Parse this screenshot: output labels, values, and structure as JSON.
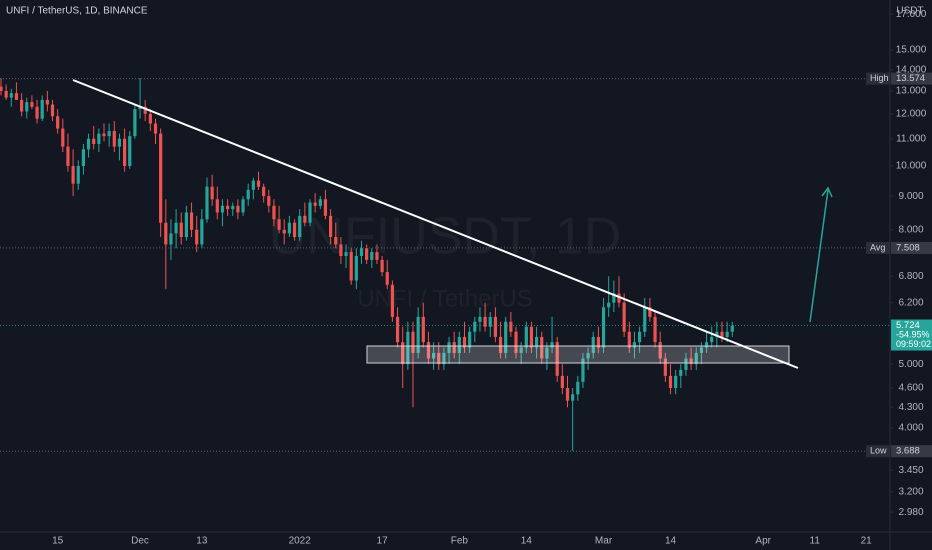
{
  "chart_data": {
    "type": "candlestick",
    "title": "UNFI / TetherUS, 1D, BINANCE",
    "watermark": "UNFIUSDT, 1D",
    "watermark_subtitle": "UNFI / TetherUS",
    "currency": "USDT",
    "log_scale": true,
    "up_color": "#26a69a",
    "down_color": "#ef5350",
    "ylim": [
      2.78,
      17.87
    ],
    "yticks": [
      {
        "value": 17,
        "label": "17.000"
      },
      {
        "value": 15,
        "label": "15.000"
      },
      {
        "value": 14,
        "label": "14.000"
      },
      {
        "value": 13,
        "label": "13.000"
      },
      {
        "value": 12,
        "label": "12.000"
      },
      {
        "value": 11,
        "label": "11.000"
      },
      {
        "value": 10,
        "label": "10.000"
      },
      {
        "value": 9,
        "label": "9.000"
      },
      {
        "value": 8,
        "label": "8.000"
      },
      {
        "value": 6.8,
        "label": "6.800"
      },
      {
        "value": 6.2,
        "label": "6.200"
      },
      {
        "value": 5,
        "label": "5.000"
      },
      {
        "value": 4.6,
        "label": "4.600"
      },
      {
        "value": 4.3,
        "label": "4.300"
      },
      {
        "value": 4,
        "label": "4.000"
      },
      {
        "value": 3.45,
        "label": "3.450"
      },
      {
        "value": 3.2,
        "label": "3.200"
      },
      {
        "value": 2.98,
        "label": "2.980"
      }
    ],
    "levels": [
      {
        "label": "High",
        "value": 13.574
      },
      {
        "label": "Avg",
        "value": 7.508
      },
      {
        "label": "Low",
        "value": 3.688
      }
    ],
    "last": {
      "value": 5.724,
      "change": "-54.95%",
      "countdown": "09:59:02"
    },
    "categories": [
      null,
      null,
      null,
      null,
      null,
      null,
      null,
      null,
      null,
      null,
      null,
      "15",
      null,
      null,
      null,
      null,
      null,
      null,
      null,
      null,
      null,
      null,
      null,
      null,
      null,
      null,
      null,
      "Dec",
      null,
      null,
      null,
      null,
      null,
      null,
      null,
      null,
      null,
      null,
      null,
      "13",
      null,
      null,
      null,
      null,
      null,
      null,
      null,
      null,
      null,
      null,
      null,
      null,
      null,
      null,
      null,
      null,
      null,
      null,
      "2022",
      null,
      null,
      null,
      null,
      null,
      null,
      null,
      null,
      null,
      null,
      null,
      null,
      null,
      null,
      null,
      "17",
      null,
      null,
      null,
      null,
      null,
      null,
      null,
      null,
      null,
      null,
      null,
      null,
      null,
      null,
      "Feb",
      null,
      null,
      null,
      null,
      null,
      null,
      null,
      null,
      null,
      null,
      null,
      null,
      "14",
      null,
      null,
      null,
      null,
      null,
      null,
      null,
      null,
      null,
      null,
      null,
      null,
      null,
      null,
      "Mar",
      null,
      null,
      null,
      null,
      null,
      null,
      null,
      null,
      null,
      null,
      null,
      null,
      "14",
      null,
      null,
      null,
      null,
      null,
      null,
      null,
      null,
      null,
      null,
      null,
      null,
      null,
      null,
      null,
      null,
      null,
      "Apr",
      null,
      null,
      null,
      null,
      null,
      null,
      null,
      null,
      null,
      "11",
      null,
      null,
      null,
      null,
      null,
      null,
      null,
      null,
      null,
      "21",
      null,
      null,
      null
    ],
    "candles": [
      [
        13.2,
        13.6,
        12.8,
        13.0
      ],
      [
        13.0,
        13.3,
        12.6,
        12.7
      ],
      [
        12.7,
        13.1,
        12.3,
        12.9
      ],
      [
        12.9,
        13.4,
        12.6,
        12.6
      ],
      [
        12.6,
        12.9,
        11.9,
        12.1
      ],
      [
        12.1,
        12.7,
        11.8,
        12.5
      ],
      [
        12.5,
        12.8,
        12.2,
        12.3
      ],
      [
        12.3,
        12.6,
        11.6,
        11.8
      ],
      [
        11.8,
        12.8,
        11.7,
        12.6
      ],
      [
        12.6,
        13.0,
        12.1,
        12.4
      ],
      [
        12.4,
        12.6,
        11.7,
        11.9
      ],
      [
        11.9,
        12.2,
        11.2,
        11.4
      ],
      [
        11.4,
        11.8,
        10.5,
        10.7
      ],
      [
        10.7,
        11.2,
        9.8,
        10.0
      ],
      [
        10.0,
        10.6,
        9.0,
        9.4
      ],
      [
        9.4,
        10.2,
        9.2,
        10.0
      ],
      [
        10.0,
        10.8,
        9.7,
        10.6
      ],
      [
        10.6,
        11.2,
        10.3,
        11.0
      ],
      [
        11.0,
        11.5,
        10.6,
        10.8
      ],
      [
        10.8,
        11.4,
        10.5,
        11.2
      ],
      [
        11.2,
        11.6,
        10.9,
        11.1
      ],
      [
        11.1,
        11.6,
        10.7,
        11.3
      ],
      [
        11.3,
        11.7,
        10.5,
        10.7
      ],
      [
        10.7,
        11.2,
        10.2,
        11.0
      ],
      [
        11.0,
        11.4,
        9.8,
        10.0
      ],
      [
        10.0,
        11.3,
        9.9,
        11.1
      ],
      [
        11.1,
        12.4,
        11.0,
        12.2
      ],
      [
        12.2,
        13.6,
        11.8,
        12.3
      ],
      [
        12.3,
        12.6,
        11.7,
        12.0
      ],
      [
        12.0,
        12.2,
        11.3,
        11.6
      ],
      [
        11.6,
        11.8,
        10.8,
        11.2
      ],
      [
        11.2,
        11.4,
        7.8,
        8.2
      ],
      [
        8.2,
        8.9,
        6.5,
        7.6
      ],
      [
        7.6,
        8.3,
        7.2,
        7.9
      ],
      [
        7.9,
        8.6,
        7.5,
        8.2
      ],
      [
        8.2,
        8.5,
        7.6,
        7.8
      ],
      [
        7.8,
        8.7,
        7.7,
        8.5
      ],
      [
        8.5,
        8.8,
        7.8,
        8.0
      ],
      [
        8.0,
        8.4,
        7.4,
        7.6
      ],
      [
        7.6,
        8.6,
        7.5,
        8.3
      ],
      [
        8.3,
        9.6,
        8.2,
        9.3
      ],
      [
        9.3,
        9.7,
        8.7,
        8.9
      ],
      [
        8.9,
        9.3,
        8.3,
        8.5
      ],
      [
        8.5,
        8.9,
        8.1,
        8.7
      ],
      [
        8.7,
        8.9,
        8.4,
        8.6
      ],
      [
        8.6,
        8.8,
        8.4,
        8.7
      ],
      [
        8.7,
        8.9,
        8.3,
        8.5
      ],
      [
        8.5,
        9.0,
        8.4,
        8.9
      ],
      [
        8.9,
        9.4,
        8.7,
        9.2
      ],
      [
        9.2,
        9.6,
        8.9,
        9.5
      ],
      [
        9.5,
        9.8,
        9.2,
        9.3
      ],
      [
        9.3,
        9.4,
        8.8,
        9.0
      ],
      [
        9.0,
        9.2,
        8.5,
        8.7
      ],
      [
        8.7,
        8.9,
        8.1,
        8.3
      ],
      [
        8.3,
        8.7,
        7.9,
        8.0
      ],
      [
        8.0,
        8.3,
        7.6,
        7.9
      ],
      [
        7.9,
        8.4,
        7.8,
        8.2
      ],
      [
        8.2,
        8.3,
        7.7,
        7.8
      ],
      [
        7.8,
        8.6,
        7.7,
        8.4
      ],
      [
        8.4,
        8.8,
        8.1,
        8.2
      ],
      [
        8.2,
        8.9,
        8.1,
        8.8
      ],
      [
        8.8,
        9.1,
        8.5,
        8.7
      ],
      [
        8.7,
        9.0,
        8.6,
        8.9
      ],
      [
        8.9,
        9.2,
        8.3,
        8.4
      ],
      [
        8.4,
        8.6,
        7.6,
        7.8
      ],
      [
        7.8,
        8.2,
        7.5,
        7.6
      ],
      [
        7.6,
        7.8,
        7.1,
        7.3
      ],
      [
        7.3,
        7.6,
        7.0,
        7.4
      ],
      [
        7.4,
        7.5,
        6.6,
        6.7
      ],
      [
        6.7,
        7.5,
        6.5,
        7.3
      ],
      [
        7.3,
        7.7,
        7.1,
        7.5
      ],
      [
        7.5,
        7.6,
        7.1,
        7.2
      ],
      [
        7.2,
        7.5,
        7.0,
        7.4
      ],
      [
        7.4,
        7.6,
        7.1,
        7.2
      ],
      [
        7.2,
        7.3,
        6.8,
        6.9
      ],
      [
        6.9,
        7.2,
        6.5,
        6.6
      ],
      [
        6.6,
        6.7,
        5.8,
        5.9
      ],
      [
        5.9,
        6.1,
        5.3,
        5.4
      ],
      [
        5.4,
        5.7,
        4.6,
        5.0
      ],
      [
        5.0,
        5.8,
        4.9,
        5.6
      ],
      [
        5.6,
        5.8,
        4.3,
        5.2
      ],
      [
        5.2,
        6.1,
        5.1,
        5.9
      ],
      [
        5.9,
        6.2,
        5.3,
        5.4
      ],
      [
        5.4,
        5.6,
        5.0,
        5.1
      ],
      [
        5.1,
        5.4,
        4.9,
        5.2
      ],
      [
        5.2,
        5.4,
        4.9,
        5.0
      ],
      [
        5.0,
        5.3,
        4.9,
        5.2
      ],
      [
        5.2,
        5.5,
        5.0,
        5.4
      ],
      [
        5.4,
        5.6,
        5.1,
        5.2
      ],
      [
        5.2,
        5.6,
        5.0,
        5.5
      ],
      [
        5.5,
        5.8,
        5.2,
        5.3
      ],
      [
        5.3,
        5.7,
        5.2,
        5.6
      ],
      [
        5.6,
        5.9,
        5.4,
        5.8
      ],
      [
        5.8,
        6.1,
        5.6,
        5.9
      ],
      [
        5.9,
        6.2,
        5.6,
        5.7
      ],
      [
        5.7,
        6.0,
        5.5,
        5.9
      ],
      [
        5.9,
        6.1,
        5.4,
        5.5
      ],
      [
        5.5,
        5.8,
        5.1,
        5.2
      ],
      [
        5.2,
        5.9,
        5.1,
        5.8
      ],
      [
        5.8,
        6.0,
        5.5,
        5.6
      ],
      [
        5.6,
        5.7,
        5.1,
        5.2
      ],
      [
        5.2,
        5.4,
        5.0,
        5.3
      ],
      [
        5.3,
        5.8,
        5.2,
        5.7
      ],
      [
        5.7,
        5.8,
        5.2,
        5.3
      ],
      [
        5.3,
        5.7,
        5.1,
        5.5
      ],
      [
        5.5,
        5.6,
        5.0,
        5.1
      ],
      [
        5.1,
        5.4,
        4.9,
        5.3
      ],
      [
        5.3,
        5.9,
        5.2,
        5.4
      ],
      [
        5.4,
        5.5,
        4.7,
        4.8
      ],
      [
        4.8,
        5.0,
        4.5,
        4.6
      ],
      [
        4.6,
        4.8,
        4.3,
        4.4
      ],
      [
        4.4,
        4.6,
        3.69,
        4.5
      ],
      [
        4.5,
        4.8,
        4.4,
        4.7
      ],
      [
        4.7,
        5.2,
        4.6,
        5.1
      ],
      [
        5.1,
        5.3,
        4.9,
        5.2
      ],
      [
        5.2,
        5.6,
        5.1,
        5.5
      ],
      [
        5.5,
        5.7,
        5.2,
        5.3
      ],
      [
        5.3,
        6.3,
        5.2,
        6.1
      ],
      [
        6.1,
        6.8,
        5.9,
        6.2
      ],
      [
        6.2,
        6.7,
        6.0,
        6.4
      ],
      [
        6.4,
        6.8,
        6.1,
        6.2
      ],
      [
        6.2,
        6.4,
        5.5,
        5.6
      ],
      [
        5.6,
        5.8,
        5.2,
        5.3
      ],
      [
        5.3,
        5.6,
        5.1,
        5.4
      ],
      [
        5.4,
        5.7,
        5.2,
        5.6
      ],
      [
        5.6,
        6.3,
        5.5,
        6.1
      ],
      [
        6.1,
        6.3,
        5.8,
        5.9
      ],
      [
        5.9,
        6.0,
        5.3,
        5.4
      ],
      [
        5.4,
        5.6,
        5.0,
        5.1
      ],
      [
        5.1,
        5.2,
        4.7,
        4.8
      ],
      [
        4.8,
        5.0,
        4.5,
        4.6
      ],
      [
        4.6,
        4.9,
        4.5,
        4.8
      ],
      [
        4.8,
        5.0,
        4.6,
        4.9
      ],
      [
        4.9,
        5.2,
        4.8,
        5.1
      ],
      [
        5.1,
        5.3,
        4.9,
        5.0
      ],
      [
        5.0,
        5.3,
        4.9,
        5.2
      ],
      [
        5.2,
        5.4,
        5.0,
        5.3
      ],
      [
        5.3,
        5.6,
        5.2,
        5.4
      ],
      [
        5.4,
        5.7,
        5.3,
        5.5
      ],
      [
        5.5,
        5.8,
        5.3,
        5.6
      ],
      [
        5.6,
        5.8,
        5.4,
        5.5
      ],
      [
        5.5,
        5.8,
        5.4,
        5.6
      ],
      [
        5.6,
        5.8,
        5.5,
        5.724
      ],
      null,
      null,
      null,
      null,
      null,
      null,
      null,
      null,
      null,
      null,
      null,
      null,
      null,
      null,
      null,
      null,
      null,
      null,
      null,
      null,
      null,
      null,
      null,
      null,
      null,
      null,
      null,
      null,
      null
    ]
  }
}
